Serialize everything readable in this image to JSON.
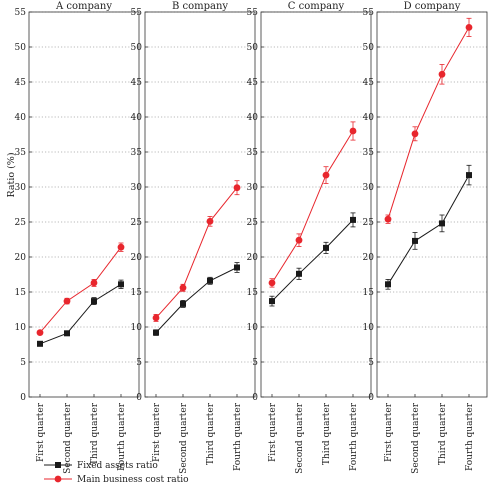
{
  "chart_data": {
    "type": "line",
    "ylabel": "Ratio (%)",
    "ylim": [
      0,
      55
    ],
    "yticks": [
      0,
      5,
      10,
      15,
      20,
      25,
      30,
      35,
      40,
      45,
      50,
      55
    ],
    "grid": "dotted horizontal",
    "categories": [
      "First quarter",
      "Second quarter",
      "Third quarter",
      "Fourth quarter"
    ],
    "legend": {
      "placement": "bottom-left",
      "entries": [
        "Fixed assets ratio",
        "Main business cost ratio"
      ]
    },
    "series_colors": [
      "#1a1a1a",
      "#e8262d"
    ],
    "panels": [
      {
        "title": "A company",
        "series": [
          {
            "name": "Fixed assets ratio",
            "values": [
              7.6,
              9.1,
              13.7,
              16.1
            ],
            "errors": [
              0.3,
              0.3,
              0.5,
              0.6
            ]
          },
          {
            "name": "Main business cost ratio",
            "values": [
              9.2,
              13.7,
              16.3,
              21.4
            ],
            "errors": [
              0.3,
              0.4,
              0.5,
              0.6
            ]
          }
        ]
      },
      {
        "title": "B company",
        "series": [
          {
            "name": "Fixed assets ratio",
            "values": [
              9.2,
              13.3,
              16.6,
              18.5
            ],
            "errors": [
              0.4,
              0.5,
              0.5,
              0.7
            ]
          },
          {
            "name": "Main business cost ratio",
            "values": [
              11.3,
              15.6,
              25.1,
              29.9
            ],
            "errors": [
              0.5,
              0.5,
              0.7,
              1.0
            ]
          }
        ]
      },
      {
        "title": "C company",
        "series": [
          {
            "name": "Fixed assets ratio",
            "values": [
              13.7,
              17.6,
              21.3,
              25.3
            ],
            "errors": [
              0.7,
              0.8,
              0.8,
              1.0
            ]
          },
          {
            "name": "Main business cost ratio",
            "values": [
              16.3,
              22.4,
              31.7,
              38.0
            ],
            "errors": [
              0.6,
              0.9,
              1.2,
              1.3
            ]
          }
        ]
      },
      {
        "title": "D company",
        "series": [
          {
            "name": "Fixed assets ratio",
            "values": [
              16.1,
              22.3,
              24.8,
              31.7
            ],
            "errors": [
              0.7,
              1.2,
              1.2,
              1.4
            ]
          },
          {
            "name": "Main business cost ratio",
            "values": [
              25.4,
              37.6,
              46.1,
              52.8
            ],
            "errors": [
              0.6,
              1.0,
              1.4,
              1.3
            ]
          }
        ]
      }
    ]
  }
}
